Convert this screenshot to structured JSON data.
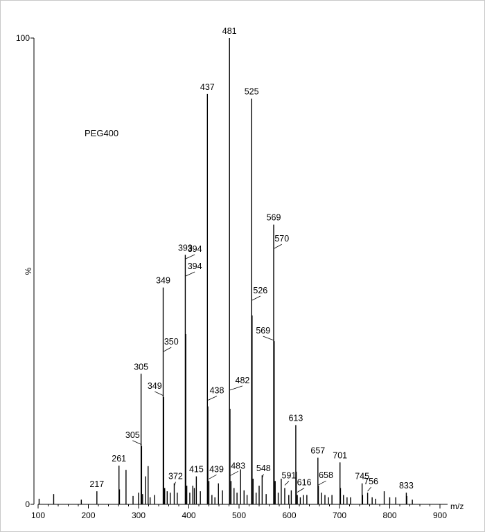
{
  "chart_data": {
    "type": "bar",
    "title": "",
    "annotation": "PEG400",
    "xlabel": "m/z",
    "ylabel": "%",
    "xlim": [
      100,
      900
    ],
    "ylim": [
      0,
      100
    ],
    "x_ticks": [
      "100",
      "200",
      "300",
      "400",
      "500",
      "600",
      "700",
      "800",
      "900"
    ],
    "y_ticks": [
      "0",
      "100"
    ],
    "grid": false,
    "series": [
      {
        "values": [
          [
            102,
            1.2
          ],
          [
            131,
            2.2
          ],
          [
            186,
            1.0
          ],
          [
            217,
            2.8
          ],
          [
            261,
            8.3
          ],
          [
            262,
            3.2
          ],
          [
            275,
            7.4
          ],
          [
            289,
            1.8
          ],
          [
            300,
            2.5
          ],
          [
            305,
            28.0
          ],
          [
            306,
            12.5
          ],
          [
            308,
            2.2
          ],
          [
            314,
            6.0
          ],
          [
            319,
            8.2
          ],
          [
            323,
            1.5
          ],
          [
            332,
            2.0
          ],
          [
            349,
            46.5
          ],
          [
            350,
            23.0
          ],
          [
            352,
            3.5
          ],
          [
            357,
            2.8
          ],
          [
            363,
            2.5
          ],
          [
            371,
            4.5
          ],
          [
            377,
            2.5
          ],
          [
            393,
            53.5
          ],
          [
            394,
            36.5
          ],
          [
            396,
            4.0
          ],
          [
            402,
            2.5
          ],
          [
            408,
            4.0
          ],
          [
            411,
            3.5
          ],
          [
            415,
            6.0
          ],
          [
            423,
            2.8
          ],
          [
            437,
            88.0
          ],
          [
            438,
            21.0
          ],
          [
            440,
            5.0
          ],
          [
            446,
            2.0
          ],
          [
            452,
            1.5
          ],
          [
            459,
            4.5
          ],
          [
            467,
            3.0
          ],
          [
            481,
            100.0
          ],
          [
            482,
            20.5
          ],
          [
            484,
            5.0
          ],
          [
            490,
            3.5
          ],
          [
            496,
            2.5
          ],
          [
            503,
            7.5
          ],
          [
            510,
            3.0
          ],
          [
            516,
            2.0
          ],
          [
            525,
            87.0
          ],
          [
            526,
            40.5
          ],
          [
            528,
            5.5
          ],
          [
            534,
            2.5
          ],
          [
            540,
            4.0
          ],
          [
            546,
            6.2
          ],
          [
            554,
            2.2
          ],
          [
            569,
            60.0
          ],
          [
            570,
            35.0
          ],
          [
            572,
            5.0
          ],
          [
            578,
            2.5
          ],
          [
            584,
            5.5
          ],
          [
            591,
            3.5
          ],
          [
            599,
            2.0
          ],
          [
            604,
            3.0
          ],
          [
            613,
            17.0
          ],
          [
            614,
            7.0
          ],
          [
            616,
            2.0
          ],
          [
            622,
            1.5
          ],
          [
            628,
            2.0
          ],
          [
            635,
            2.0
          ],
          [
            657,
            10.0
          ],
          [
            658,
            4.0
          ],
          [
            664,
            2.5
          ],
          [
            671,
            2.0
          ],
          [
            678,
            1.5
          ],
          [
            685,
            2.0
          ],
          [
            701,
            9.0
          ],
          [
            702,
            3.5
          ],
          [
            708,
            2.0
          ],
          [
            715,
            1.5
          ],
          [
            722,
            1.5
          ],
          [
            745,
            4.5
          ],
          [
            746,
            2.0
          ],
          [
            756,
            2.5
          ],
          [
            765,
            1.5
          ],
          [
            772,
            1.2
          ],
          [
            789,
            2.8
          ],
          [
            800,
            1.5
          ],
          [
            812,
            1.5
          ],
          [
            833,
            2.5
          ],
          [
            834,
            1.8
          ],
          [
            845,
            1.0
          ]
        ]
      }
    ],
    "labels": [
      {
        "text": "481",
        "x": 481,
        "y": 100.0
      },
      {
        "text": "437",
        "x": 437,
        "y": 88.0
      },
      {
        "text": "525",
        "x": 525,
        "y": 87.0
      },
      {
        "text": "569",
        "x": 569,
        "y": 60.0
      },
      {
        "text": "393",
        "x": 393,
        "y": 53.5
      },
      {
        "text": "349",
        "x": 349,
        "y": 46.5
      },
      {
        "text": "482",
        "x": 482,
        "y": 20.5,
        "offset_x": 18,
        "offset_y": -31
      },
      {
        "text": "569",
        "x": 570,
        "y": 35.0,
        "offset_x": -16,
        "offset_y": -5
      },
      {
        "text": "526",
        "x": 526,
        "y": 40.5,
        "offset_x": 12,
        "offset_y": -26
      },
      {
        "text": "305",
        "x": 305,
        "y": 28.0
      },
      {
        "text": "349",
        "x": 350,
        "y": 23.0,
        "offset_x": -13,
        "offset_y": -6
      },
      {
        "text": "305",
        "x": 306,
        "y": 12.5,
        "offset_x": -13,
        "offset_y": -6
      },
      {
        "text": "438",
        "x": 438,
        "y": 21.0,
        "offset_x": 13,
        "offset_y": -13
      },
      {
        "text": "394",
        "x": 394,
        "y": 36.5,
        "offset_x": 13,
        "offset_y": -113
      },
      {
        "text": "394",
        "x": 394,
        "y": 36.5,
        "offset_x": 13,
        "offset_y": -88
      },
      {
        "text": "350",
        "x": 350,
        "y": 23.0,
        "offset_x": 11,
        "offset_y": -70
      },
      {
        "text": "613",
        "x": 613,
        "y": 17.0
      },
      {
        "text": "570",
        "x": 570,
        "y": 35.0,
        "offset_x": 11,
        "offset_y": -138
      },
      {
        "text": "657",
        "x": 657,
        "y": 10.0
      },
      {
        "text": "701",
        "x": 701,
        "y": 9.0
      },
      {
        "text": "483",
        "x": 483,
        "y": 5.0,
        "offset_x": 11,
        "offset_y": -12
      },
      {
        "text": "261",
        "x": 261,
        "y": 8.3
      },
      {
        "text": "548",
        "x": 546,
        "y": 6.2,
        "offset_x": 2
      },
      {
        "text": "372",
        "x": 371,
        "y": 4.5,
        "offset_x": 2
      },
      {
        "text": "415",
        "x": 415,
        "y": 6.0
      },
      {
        "text": "591",
        "x": 591,
        "y": 3.5,
        "offset_x": 6,
        "offset_y": -8
      },
      {
        "text": "658",
        "x": 658,
        "y": 4.0,
        "offset_x": 11,
        "offset_y": -5
      },
      {
        "text": "439",
        "x": 440,
        "y": 5.0,
        "offset_x": 11,
        "offset_y": -7
      },
      {
        "text": "616",
        "x": 616,
        "y": 2.0,
        "offset_x": 10,
        "offset_y": -8
      },
      {
        "text": "745",
        "x": 745,
        "y": 4.5
      },
      {
        "text": "756",
        "x": 756,
        "y": 2.5,
        "offset_x": 5,
        "offset_y": -6
      },
      {
        "text": "833",
        "x": 833,
        "y": 2.5
      },
      {
        "text": "217",
        "x": 217,
        "y": 2.8
      }
    ]
  }
}
